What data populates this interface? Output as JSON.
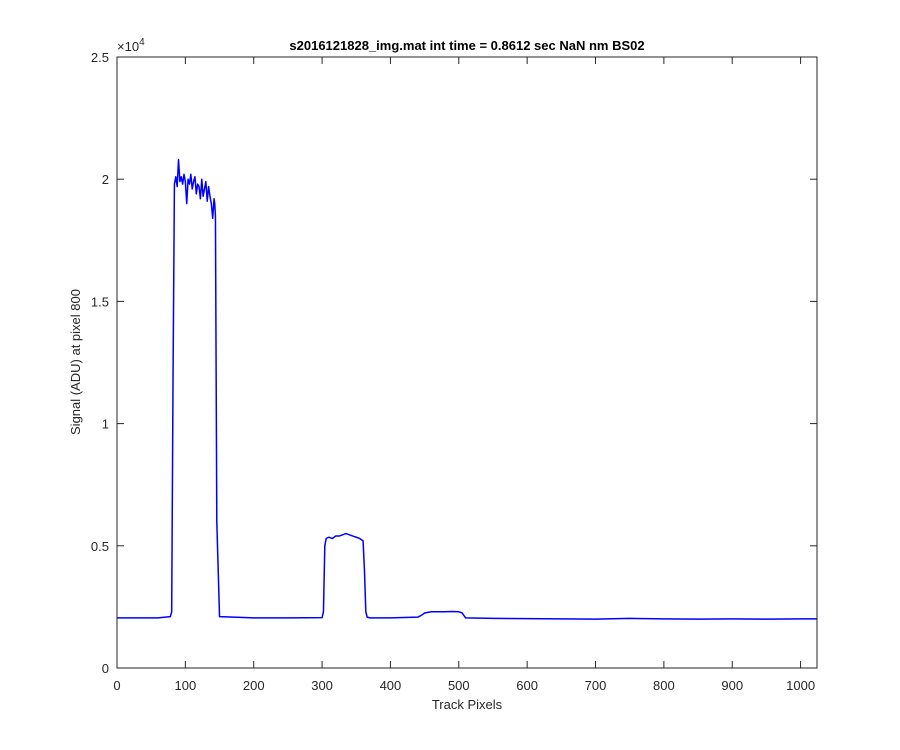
{
  "chart_data": {
    "type": "line",
    "title": "s2016121828_img.mat int time = 0.8612 sec  NaN nm BS02",
    "xlabel": "Track Pixels",
    "ylabel": "Signal (ADU) at pixel 800",
    "xlim": [
      0,
      1024
    ],
    "ylim": [
      0,
      25000
    ],
    "y_exponent_label": "×10",
    "y_exponent_power": "4",
    "x_ticks": [
      "0",
      "100",
      "200",
      "300",
      "400",
      "500",
      "600",
      "700",
      "800",
      "900",
      "1000"
    ],
    "x_tick_values": [
      0,
      100,
      200,
      300,
      400,
      500,
      600,
      700,
      800,
      900,
      1000
    ],
    "y_ticks": [
      "0",
      "0.5",
      "1",
      "1.5",
      "2",
      "2.5"
    ],
    "y_tick_values": [
      0,
      5000,
      10000,
      15000,
      20000,
      25000
    ],
    "grid": false,
    "series": [
      {
        "color": "#0000ff",
        "x": [
          0,
          60,
          78,
          80,
          82,
          84,
          86,
          88,
          90,
          92,
          94,
          96,
          98,
          100,
          102,
          104,
          106,
          108,
          110,
          112,
          114,
          116,
          118,
          120,
          122,
          124,
          126,
          128,
          130,
          132,
          134,
          136,
          138,
          140,
          142,
          143,
          144,
          146,
          150,
          200,
          250,
          300,
          302,
          304,
          306,
          310,
          315,
          320,
          325,
          330,
          335,
          340,
          345,
          350,
          355,
          360,
          362,
          364,
          366,
          370,
          400,
          440,
          445,
          450,
          460,
          470,
          480,
          490,
          500,
          505,
          510,
          550,
          600,
          650,
          700,
          750,
          800,
          850,
          900,
          950,
          1000,
          1024
        ],
        "y": [
          2050,
          2050,
          2100,
          2300,
          12000,
          19800,
          20100,
          19700,
          20800,
          19900,
          20100,
          19800,
          20200,
          19900,
          19000,
          20000,
          19800,
          20200,
          19600,
          19900,
          20100,
          19400,
          19800,
          19700,
          19200,
          20000,
          19300,
          19600,
          19900,
          19100,
          19700,
          19300,
          19000,
          18400,
          19200,
          19000,
          18500,
          6000,
          2100,
          2050,
          2050,
          2060,
          2300,
          5000,
          5300,
          5350,
          5300,
          5400,
          5400,
          5450,
          5500,
          5450,
          5400,
          5350,
          5300,
          5200,
          4000,
          2300,
          2080,
          2050,
          2050,
          2080,
          2150,
          2250,
          2300,
          2300,
          2300,
          2310,
          2300,
          2250,
          2050,
          2030,
          2020,
          2010,
          2000,
          2030,
          2010,
          2000,
          2010,
          2000,
          2010,
          2010
        ]
      }
    ]
  }
}
